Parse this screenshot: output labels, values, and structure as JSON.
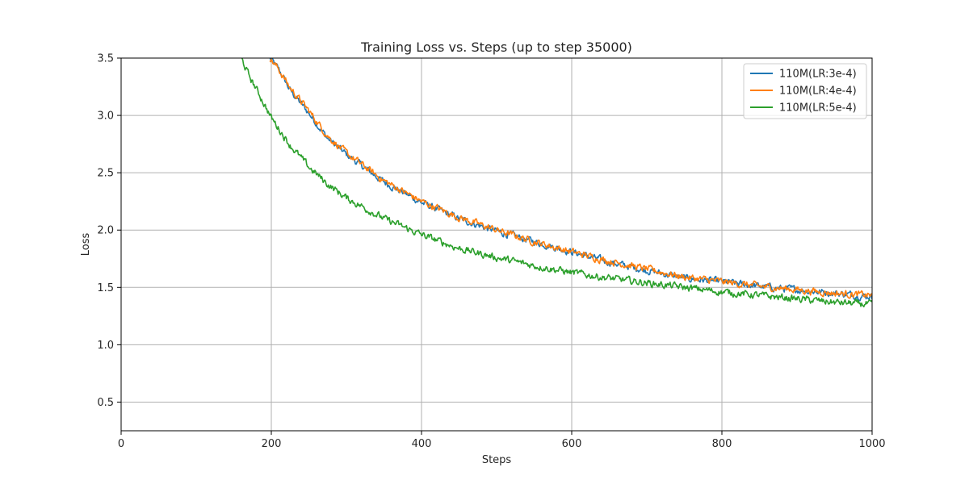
{
  "chart_data": {
    "type": "line",
    "title": "Training Loss vs. Steps (up to step 35000)",
    "xlabel": "Steps",
    "ylabel": "Loss",
    "xlim": [
      0,
      1000
    ],
    "ylim": [
      0.25,
      3.5
    ],
    "xticks": [
      0,
      200,
      400,
      600,
      800,
      1000
    ],
    "yticks": [
      0.5,
      1.0,
      1.5,
      2.0,
      2.5,
      3.0,
      3.5
    ],
    "xtick_labels": [
      "0",
      "200",
      "400",
      "600",
      "800",
      "1000"
    ],
    "ytick_labels": [
      "0.5",
      "1.0",
      "1.5",
      "2.0",
      "2.5",
      "3.0",
      "3.5"
    ],
    "grid": true,
    "legend_position": "top-right",
    "series": [
      {
        "name": "110M(LR:3e-4)",
        "color": "#1f77b4",
        "x": [
          198,
          210,
          225,
          250,
          275,
          300,
          350,
          400,
          450,
          500,
          550,
          600,
          650,
          700,
          750,
          800,
          850,
          900,
          950,
          1000
        ],
        "y": [
          3.5,
          3.4,
          3.22,
          3.02,
          2.8,
          2.66,
          2.42,
          2.24,
          2.1,
          1.99,
          1.9,
          1.81,
          1.72,
          1.65,
          1.58,
          1.55,
          1.51,
          1.48,
          1.45,
          1.42
        ]
      },
      {
        "name": "110M(LR:4e-4)",
        "color": "#ff7f0e",
        "x": [
          198,
          210,
          225,
          250,
          275,
          300,
          350,
          400,
          450,
          500,
          550,
          600,
          650,
          700,
          750,
          800,
          850,
          900,
          950,
          1000
        ],
        "y": [
          3.5,
          3.4,
          3.24,
          3.04,
          2.82,
          2.67,
          2.43,
          2.25,
          2.11,
          2.0,
          1.9,
          1.81,
          1.73,
          1.66,
          1.59,
          1.55,
          1.51,
          1.48,
          1.45,
          1.43
        ]
      },
      {
        "name": "110M(LR:5e-4)",
        "color": "#2ca02c",
        "x": [
          160,
          170,
          185,
          200,
          225,
          250,
          275,
          300,
          350,
          400,
          450,
          500,
          550,
          600,
          650,
          700,
          750,
          800,
          850,
          900,
          950,
          1000
        ],
        "y": [
          3.5,
          3.35,
          3.17,
          2.98,
          2.74,
          2.55,
          2.4,
          2.28,
          2.1,
          1.96,
          1.84,
          1.76,
          1.69,
          1.63,
          1.58,
          1.54,
          1.5,
          1.46,
          1.43,
          1.4,
          1.37,
          1.35
        ]
      }
    ]
  }
}
